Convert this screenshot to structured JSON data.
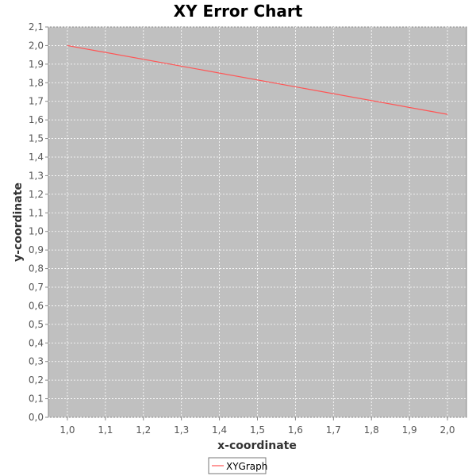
{
  "chart_data": {
    "type": "line",
    "title": "XY Error Chart",
    "xlabel": "x-coordinate",
    "ylabel": "y-coordinate",
    "xlim": [
      0.95,
      2.05
    ],
    "ylim": [
      0.0,
      2.1
    ],
    "x_ticks": [
      "1,0",
      "1,1",
      "1,2",
      "1,3",
      "1,4",
      "1,5",
      "1,6",
      "1,7",
      "1,8",
      "1,9",
      "2,0"
    ],
    "y_ticks": [
      "0,0",
      "0,1",
      "0,2",
      "0,3",
      "0,4",
      "0,5",
      "0,6",
      "0,7",
      "0,8",
      "0,9",
      "1,0",
      "1,1",
      "1,2",
      "1,3",
      "1,4",
      "1,5",
      "1,6",
      "1,7",
      "1,8",
      "1,9",
      "2,0",
      "2,1"
    ],
    "grid": true,
    "legend_position": "bottom-center",
    "series": [
      {
        "name": "XYGraph",
        "color": "#ff5555",
        "x": [
          1.0,
          2.0
        ],
        "y": [
          2.0,
          1.63
        ]
      }
    ],
    "colors": {
      "plot_background": "#c0c0c0",
      "grid": "#ffffff",
      "axis": "#888888"
    }
  }
}
